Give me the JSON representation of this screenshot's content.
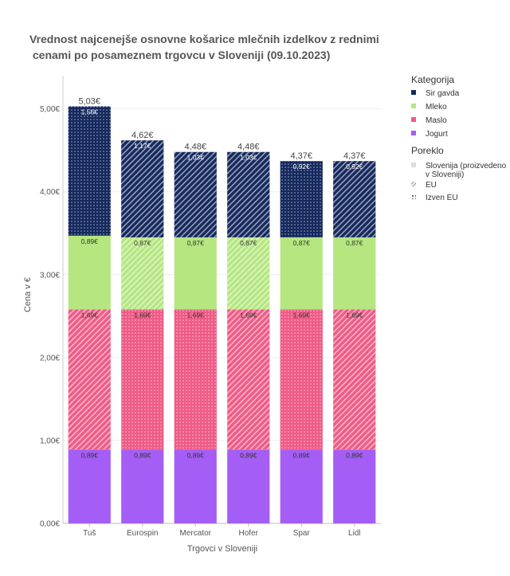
{
  "chart_data": {
    "type": "bar",
    "stacked": true,
    "title": [
      "Vrednost najcenejše osnovne košarice mlečnih izdelkov z rednimi",
      " cenami po posameznem trgovcu v Sloveniji (09.10.2023)"
    ],
    "xlabel": "Trgovci v Sloveniji",
    "ylabel": "Cena v €",
    "ylim": [
      0,
      5.4
    ],
    "yticks": [
      0,
      1,
      2,
      3,
      4,
      5
    ],
    "ytick_labels": [
      "0,00€",
      "1,00€",
      "2,00€",
      "3,00€",
      "4,00€",
      "5,00€"
    ],
    "categories": [
      "Tuš",
      "Eurospin",
      "Mercator",
      "Hofer",
      "Spar",
      "Lidl"
    ],
    "totals": [
      "5,03€",
      "4,62€",
      "4,48€",
      "4,48€",
      "4,37€",
      "4,37€"
    ],
    "series": [
      {
        "name": "Jogurt",
        "color": "#a45ef5",
        "values": [
          0.89,
          0.89,
          0.89,
          0.89,
          0.89,
          0.89
        ],
        "labels": [
          "0,89€",
          "0,89€",
          "0,89€",
          "0,89€",
          "0,89€",
          "0,89€"
        ],
        "origin": [
          "slovenija",
          "slovenija",
          "slovenija",
          "slovenija",
          "slovenija",
          "slovenija"
        ]
      },
      {
        "name": "Maslo",
        "color": "#ef5b86",
        "values": [
          1.69,
          1.69,
          1.69,
          1.69,
          1.69,
          1.69
        ],
        "labels": [
          "1,69€",
          "1,69€",
          "1,69€",
          "1,69€",
          "1,69€",
          "1,69€"
        ],
        "origin": [
          "eu",
          "izven",
          "izven",
          "eu",
          "izven",
          "eu"
        ]
      },
      {
        "name": "Mleko",
        "color": "#b5e680",
        "values": [
          0.89,
          0.87,
          0.87,
          0.87,
          0.87,
          0.87
        ],
        "labels": [
          "0,89€",
          "0,87€",
          "0,87€",
          "0,87€",
          "0,87€",
          "0,87€"
        ],
        "origin": [
          "slovenija",
          "eu",
          "slovenija",
          "eu",
          "slovenija",
          "slovenija"
        ]
      },
      {
        "name": "Sir gavda",
        "color": "#15295e",
        "values": [
          1.56,
          1.17,
          1.03,
          1.03,
          0.92,
          0.92
        ],
        "labels": [
          "1,56€",
          "1,17€",
          "1,03€",
          "1,03€",
          "0,92€",
          "0,92€"
        ],
        "origin": [
          "izven",
          "eu",
          "eu",
          "eu",
          "izven",
          "eu"
        ]
      }
    ],
    "legend": {
      "placement": "right",
      "category_title": "Kategorija",
      "category_items": [
        {
          "name": "Sir gavda",
          "color": "#15295e"
        },
        {
          "name": "Mleko",
          "color": "#b5e680"
        },
        {
          "name": "Maslo",
          "color": "#ef5b86"
        },
        {
          "name": "Jogurt",
          "color": "#a45ef5"
        }
      ],
      "origin_title": "Poreklo",
      "origin_items": [
        {
          "key": "slovenija",
          "lines": [
            "Slovenija (proizvedeno",
            "v Sloveniji)"
          ]
        },
        {
          "key": "eu",
          "lines": [
            "EU"
          ]
        },
        {
          "key": "izven",
          "lines": [
            "Izven EU"
          ]
        }
      ]
    },
    "grid": true
  }
}
